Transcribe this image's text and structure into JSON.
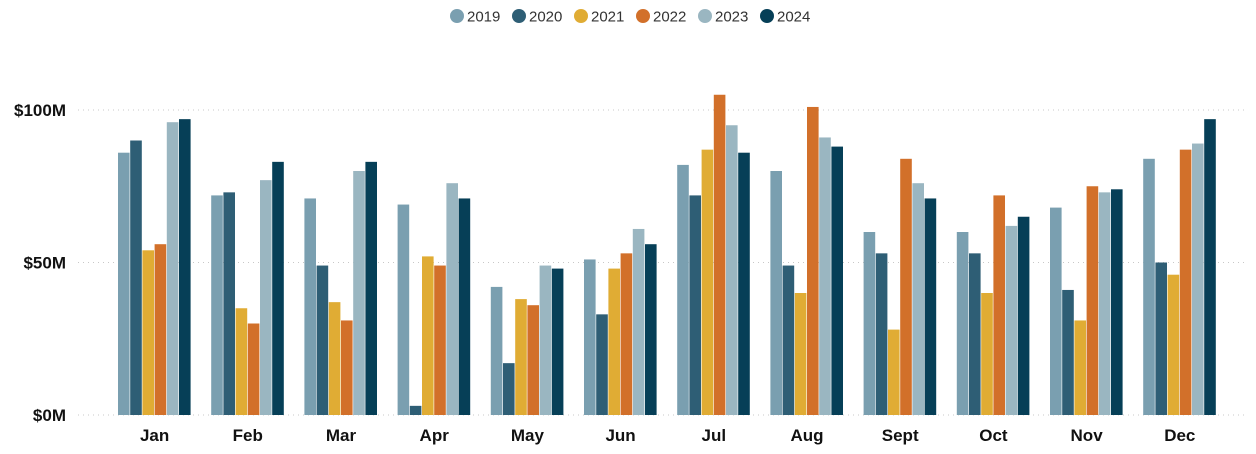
{
  "chart_data": {
    "type": "bar",
    "title": "",
    "xlabel": "",
    "ylabel": "",
    "categories": [
      "Jan",
      "Feb",
      "Mar",
      "Apr",
      "May",
      "Jun",
      "Jul",
      "Aug",
      "Sept",
      "Oct",
      "Nov",
      "Dec"
    ],
    "series": [
      {
        "name": "2019",
        "color": "#7a9fb0",
        "values": [
          86,
          72,
          71,
          69,
          42,
          51,
          82,
          80,
          60,
          60,
          68,
          84
        ]
      },
      {
        "name": "2020",
        "color": "#2e5e75",
        "values": [
          90,
          73,
          49,
          3,
          17,
          33,
          72,
          49,
          53,
          53,
          41,
          50
        ]
      },
      {
        "name": "2021",
        "color": "#e0ac34",
        "values": [
          54,
          35,
          37,
          52,
          38,
          48,
          87,
          40,
          28,
          40,
          31,
          46
        ]
      },
      {
        "name": "2022",
        "color": "#d2702a",
        "values": [
          56,
          30,
          31,
          49,
          36,
          53,
          105,
          101,
          84,
          72,
          75,
          87
        ]
      },
      {
        "name": "2023",
        "color": "#9ab6c1",
        "values": [
          96,
          77,
          80,
          76,
          49,
          61,
          95,
          91,
          76,
          62,
          73,
          89
        ]
      },
      {
        "name": "2024",
        "color": "#063f57",
        "values": [
          97,
          83,
          83,
          71,
          48,
          56,
          86,
          88,
          71,
          65,
          74,
          97
        ]
      }
    ],
    "ylim": [
      0,
      105
    ],
    "yticks": [
      {
        "value": 0,
        "label": "$0M"
      },
      {
        "value": 50,
        "label": "$50M"
      },
      {
        "value": 100,
        "label": "$100M"
      }
    ],
    "grid": true,
    "legend_position": "top-center"
  }
}
